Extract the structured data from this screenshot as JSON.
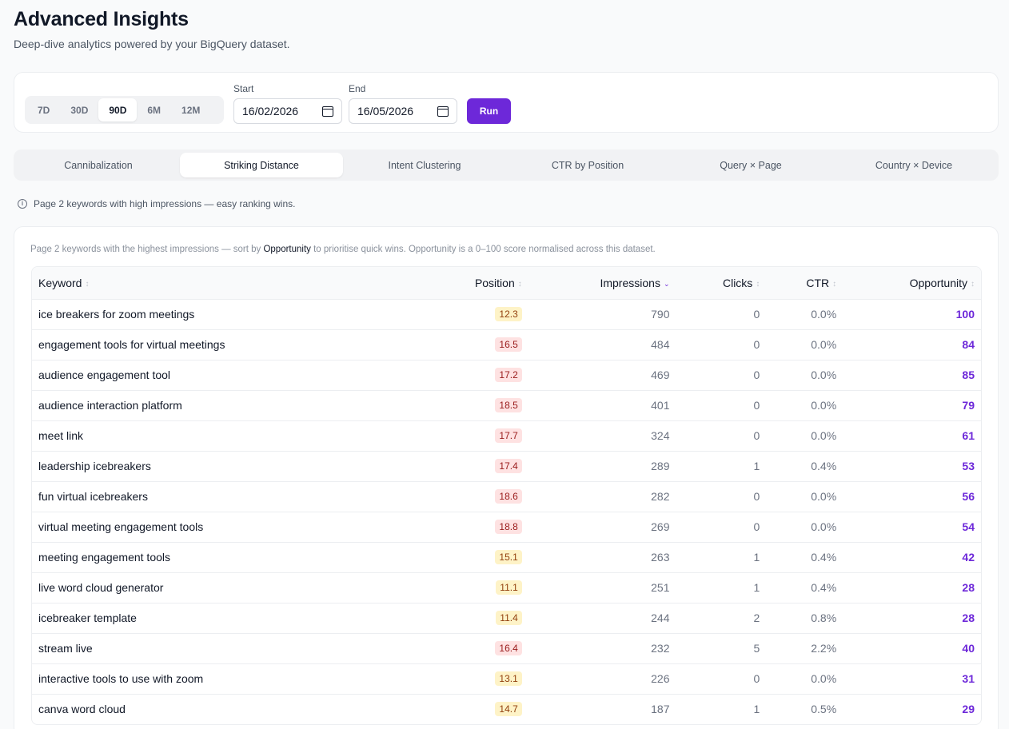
{
  "header": {
    "title": "Advanced Insights",
    "subtitle": "Deep-dive analytics powered by your BigQuery dataset."
  },
  "controls": {
    "ranges": [
      "7D",
      "30D",
      "90D",
      "6M",
      "12M"
    ],
    "active_range": "90D",
    "start_label": "Start",
    "start_value": "16/02/2026",
    "end_label": "End",
    "end_value": "16/05/2026",
    "run_label": "Run"
  },
  "tabs": [
    "Cannibalization",
    "Striking Distance",
    "Intent Clustering",
    "CTR by Position",
    "Query × Page",
    "Country × Device"
  ],
  "active_tab": "Striking Distance",
  "hint": "Page 2 keywords with high impressions — easy ranking wins.",
  "table": {
    "description_pre": "Page 2 keywords with the highest impressions — sort by ",
    "description_strong": "Opportunity",
    "description_post": " to prioritise quick wins. Opportunity is a 0–100 score normalised across this dataset.",
    "columns": {
      "keyword": "Keyword",
      "position": "Position",
      "impressions": "Impressions",
      "clicks": "Clicks",
      "ctr": "CTR",
      "opportunity": "Opportunity"
    },
    "sorted_by": "impressions",
    "rows": [
      {
        "keyword": "ice breakers for zoom meetings",
        "position": "12.3",
        "level": "warn",
        "impressions": "790",
        "clicks": "0",
        "ctr": "0.0%",
        "opportunity": "100"
      },
      {
        "keyword": "engagement tools for virtual meetings",
        "position": "16.5",
        "level": "bad",
        "impressions": "484",
        "clicks": "0",
        "ctr": "0.0%",
        "opportunity": "84"
      },
      {
        "keyword": "audience engagement tool",
        "position": "17.2",
        "level": "bad",
        "impressions": "469",
        "clicks": "0",
        "ctr": "0.0%",
        "opportunity": "85"
      },
      {
        "keyword": "audience interaction platform",
        "position": "18.5",
        "level": "bad",
        "impressions": "401",
        "clicks": "0",
        "ctr": "0.0%",
        "opportunity": "79"
      },
      {
        "keyword": "meet link",
        "position": "17.7",
        "level": "bad",
        "impressions": "324",
        "clicks": "0",
        "ctr": "0.0%",
        "opportunity": "61"
      },
      {
        "keyword": "leadership icebreakers",
        "position": "17.4",
        "level": "bad",
        "impressions": "289",
        "clicks": "1",
        "ctr": "0.4%",
        "opportunity": "53"
      },
      {
        "keyword": "fun virtual icebreakers",
        "position": "18.6",
        "level": "bad",
        "impressions": "282",
        "clicks": "0",
        "ctr": "0.0%",
        "opportunity": "56"
      },
      {
        "keyword": "virtual meeting engagement tools",
        "position": "18.8",
        "level": "bad",
        "impressions": "269",
        "clicks": "0",
        "ctr": "0.0%",
        "opportunity": "54"
      },
      {
        "keyword": "meeting engagement tools",
        "position": "15.1",
        "level": "warn",
        "impressions": "263",
        "clicks": "1",
        "ctr": "0.4%",
        "opportunity": "42"
      },
      {
        "keyword": "live word cloud generator",
        "position": "11.1",
        "level": "warn",
        "impressions": "251",
        "clicks": "1",
        "ctr": "0.4%",
        "opportunity": "28"
      },
      {
        "keyword": "icebreaker template",
        "position": "11.4",
        "level": "warn",
        "impressions": "244",
        "clicks": "2",
        "ctr": "0.8%",
        "opportunity": "28"
      },
      {
        "keyword": "stream live",
        "position": "16.4",
        "level": "bad",
        "impressions": "232",
        "clicks": "5",
        "ctr": "2.2%",
        "opportunity": "40"
      },
      {
        "keyword": "interactive tools to use with zoom",
        "position": "13.1",
        "level": "warn",
        "impressions": "226",
        "clicks": "0",
        "ctr": "0.0%",
        "opportunity": "31"
      },
      {
        "keyword": "canva word cloud",
        "position": "14.7",
        "level": "warn",
        "impressions": "187",
        "clicks": "1",
        "ctr": "0.5%",
        "opportunity": "29"
      }
    ]
  },
  "colors": {
    "accent": "#6d28d9",
    "warn_bg": "#fef3c7",
    "bad_bg": "#fee2e2"
  }
}
